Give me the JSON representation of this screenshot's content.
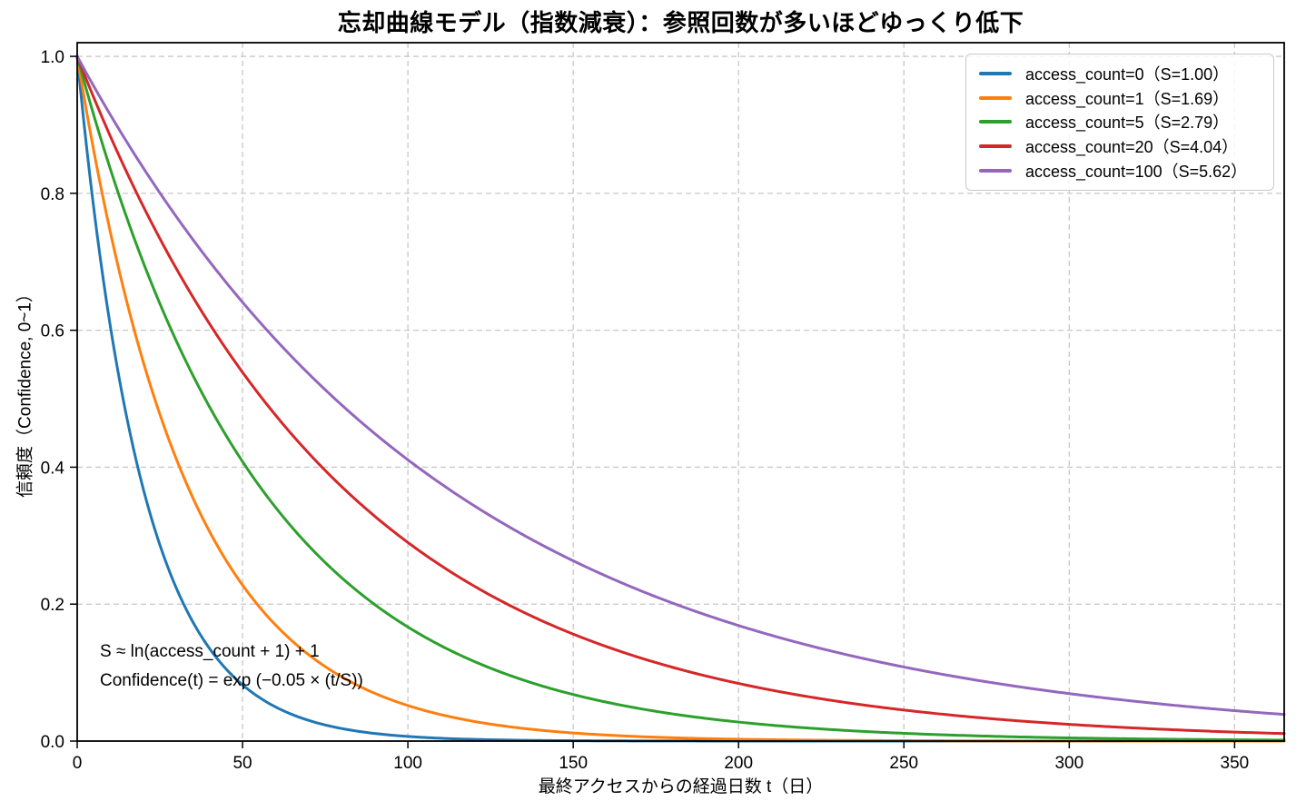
{
  "chart_data": {
    "type": "line",
    "title": "忘却曲線モデル（指数減衰）：参照回数が多いほどゆっくり低下",
    "xlabel": "最終アクセスからの経過日数 t（日）",
    "ylabel": "信頼度（Confidence, 0~1）",
    "xlim": [
      0,
      365
    ],
    "ylim": [
      0,
      1.02
    ],
    "grid": true,
    "grid_style": "dashed",
    "legend_position": "upper right",
    "x_ticks": [
      {
        "value": 0,
        "label": "0"
      },
      {
        "value": 50,
        "label": "50"
      },
      {
        "value": 100,
        "label": "100"
      },
      {
        "value": 150,
        "label": "150"
      },
      {
        "value": 200,
        "label": "200"
      },
      {
        "value": 250,
        "label": "250"
      },
      {
        "value": 300,
        "label": "300"
      },
      {
        "value": 350,
        "label": "350"
      }
    ],
    "y_ticks": [
      {
        "value": 0.0,
        "label": "0.0"
      },
      {
        "value": 0.2,
        "label": "0.2"
      },
      {
        "value": 0.4,
        "label": "0.4"
      },
      {
        "value": 0.6,
        "label": "0.6"
      },
      {
        "value": 0.8,
        "label": "0.8"
      },
      {
        "value": 1.0,
        "label": "1.0"
      }
    ],
    "model": {
      "stability_formula": "S ≈ ln(access_count + 1) + 1",
      "confidence_formula": "Confidence(t) = exp(−0.05 × (t/S))",
      "decay_rate": 0.05
    },
    "annotation": [
      "S ≈ ln(access_count + 1) + 1",
      "Confidence(t) = exp (−0.05 × (t/S))"
    ],
    "sample_x": [
      0,
      50,
      100,
      150,
      200,
      250,
      300,
      350
    ],
    "series": [
      {
        "label": "access_count=0（S=1.00）",
        "access_count": 0,
        "S": 1.0,
        "color": "#1f77b4",
        "values_at_sample_x": [
          1.0,
          0.082,
          0.007,
          0.001,
          0.0,
          0.0,
          0.0,
          0.0
        ]
      },
      {
        "label": "access_count=1（S=1.69）",
        "access_count": 1,
        "S": 1.69,
        "color": "#ff7f0e",
        "values_at_sample_x": [
          1.0,
          0.228,
          0.052,
          0.012,
          0.003,
          0.001,
          0.0,
          0.0
        ]
      },
      {
        "label": "access_count=5（S=2.79）",
        "access_count": 5,
        "S": 2.79,
        "color": "#2ca02c",
        "values_at_sample_x": [
          1.0,
          0.408,
          0.167,
          0.068,
          0.028,
          0.011,
          0.005,
          0.002
        ]
      },
      {
        "label": "access_count=20（S=4.04）",
        "access_count": 20,
        "S": 4.04,
        "color": "#d62728",
        "values_at_sample_x": [
          1.0,
          0.539,
          0.29,
          0.156,
          0.084,
          0.045,
          0.024,
          0.013
        ]
      },
      {
        "label": "access_count=100（S=5.62）",
        "access_count": 100,
        "S": 5.62,
        "color": "#9467bd",
        "values_at_sample_x": [
          1.0,
          0.641,
          0.411,
          0.263,
          0.169,
          0.108,
          0.069,
          0.044
        ]
      }
    ]
  }
}
